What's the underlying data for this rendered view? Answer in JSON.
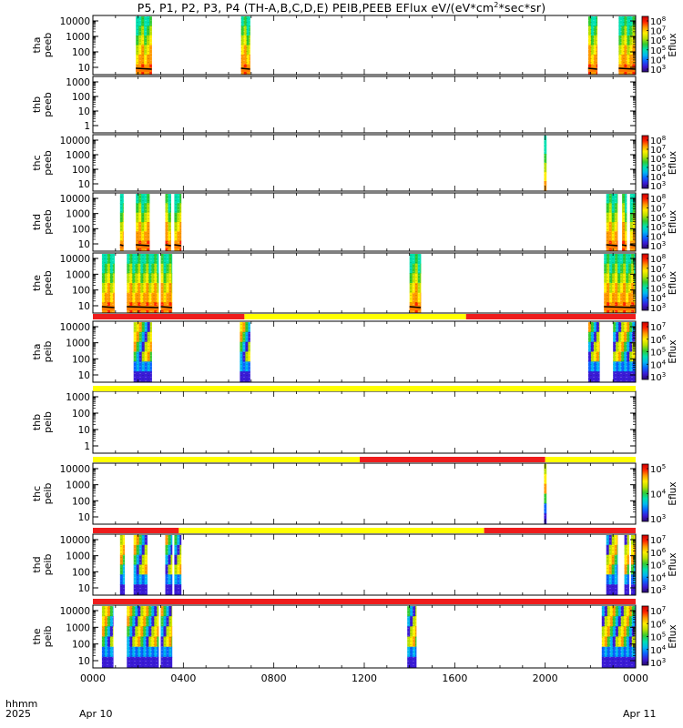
{
  "title_main": "P5, P1, P2, P3, P4 (TH-A,B,C,D,E) PEIB,PEEB EFlux eV/(eV*cm",
  "title_sup": "2",
  "title_tail": "*sec*sr)",
  "colorbar_label": "Eflux",
  "colors": {
    "spectrum": [
      "#2b0a6e",
      "#3a1bd6",
      "#0a63ff",
      "#00b7f0",
      "#00e0b0",
      "#33cc33",
      "#b8e000",
      "#ffee00",
      "#ff9900",
      "#ff2200",
      "#c80000"
    ],
    "flag_red": "#ee1c1c",
    "flag_yellow": "#ffff00",
    "density_orange": "#ff7a00"
  },
  "footer": {
    "axis_label_1": "hhmm",
    "axis_label_2": "2025",
    "date_start": "Apr 10",
    "date_end": "Apr 11"
  },
  "chart_data": {
    "type": "heatmap",
    "x_unit": "hhmm",
    "x_range": [
      "0000 Apr 10",
      "0000 Apr 11"
    ],
    "x_tick_labels": [
      "0000",
      "0400",
      "0800",
      "1200",
      "1600",
      "2000",
      "0000"
    ],
    "panels": [
      {
        "probe": "tha",
        "ylabel": "tha\npeeb",
        "y_ticks": [
          "10",
          "100",
          "1000",
          "10000"
        ],
        "cbar_ticks": [
          "10^3",
          "10^4",
          "10^5",
          "10^6",
          "10^7",
          "10^8"
        ],
        "intervals": [
          [
            1.9,
            2.6
          ],
          [
            6.55,
            6.95
          ],
          [
            21.9,
            22.3
          ],
          [
            23.25,
            24.0
          ]
        ],
        "density_line": true
      },
      {
        "probe": "thb",
        "ylabel": "thb\npeeb",
        "y_ticks": [
          "1",
          "10",
          "100",
          "1000"
        ],
        "cbar_ticks": [],
        "intervals": [],
        "density_line": false
      },
      {
        "probe": "thc",
        "ylabel": "thc\npeeb",
        "y_ticks": [
          "10",
          "100",
          "1000",
          "10000"
        ],
        "cbar_ticks": [
          "10^3",
          "10^4",
          "10^5",
          "10^6",
          "10^7",
          "10^8"
        ],
        "intervals": [
          [
            19.95,
            20.05
          ]
        ],
        "density_line": false
      },
      {
        "probe": "thd",
        "ylabel": "thd\npeeb",
        "y_ticks": [
          "10",
          "100",
          "1000",
          "10000"
        ],
        "cbar_ticks": [
          "10^3",
          "10^4",
          "10^5",
          "10^6",
          "10^7",
          "10^8"
        ],
        "intervals": [
          [
            1.2,
            1.35
          ],
          [
            1.9,
            2.5
          ],
          [
            3.2,
            3.45
          ],
          [
            3.6,
            3.9
          ],
          [
            22.7,
            23.2
          ],
          [
            23.4,
            23.6
          ],
          [
            23.75,
            24.0
          ]
        ],
        "density_line": true
      },
      {
        "probe": "the",
        "ylabel": "the\npeeb",
        "y_ticks": [
          "10",
          "100",
          "1000",
          "10000"
        ],
        "cbar_ticks": [
          "10^3",
          "10^4",
          "10^5",
          "10^6",
          "10^7",
          "10^8"
        ],
        "intervals": [
          [
            0.4,
            0.95
          ],
          [
            1.5,
            2.9
          ],
          [
            3.0,
            3.5
          ],
          [
            14.0,
            14.5
          ],
          [
            22.6,
            24.0
          ]
        ],
        "density_line": true
      },
      {
        "probe": "tha",
        "ylabel": "tha\npeib",
        "y_ticks": [
          "10",
          "100",
          "1000",
          "10000"
        ],
        "cbar_ticks": [
          "10^3",
          "10^4",
          "10^5",
          "10^6",
          "10^7"
        ],
        "intervals": [
          [
            1.8,
            2.6
          ],
          [
            6.5,
            6.95
          ],
          [
            21.9,
            22.4
          ],
          [
            23.0,
            24.0
          ]
        ],
        "density_line": false
      },
      {
        "probe": "thb",
        "ylabel": "thb\npeib",
        "y_ticks": [
          "1",
          "10",
          "100",
          "1000"
        ],
        "cbar_ticks": [],
        "intervals": [],
        "density_line": false
      },
      {
        "probe": "thc",
        "ylabel": "thc\npeib",
        "y_ticks": [
          "10",
          "100",
          "1000",
          "10000"
        ],
        "cbar_ticks": [
          "10^3",
          "10^4",
          "10^5"
        ],
        "intervals": [
          [
            19.95,
            20.05
          ]
        ],
        "density_line": false
      },
      {
        "probe": "thd",
        "ylabel": "thd\npeib",
        "y_ticks": [
          "10",
          "100",
          "1000",
          "10000"
        ],
        "cbar_ticks": [
          "10^3",
          "10^4",
          "10^5",
          "10^6",
          "10^7"
        ],
        "intervals": [
          [
            1.2,
            1.4
          ],
          [
            1.8,
            2.4
          ],
          [
            3.2,
            3.5
          ],
          [
            3.6,
            3.9
          ],
          [
            22.7,
            23.2
          ],
          [
            23.5,
            23.7
          ],
          [
            23.8,
            24.0
          ]
        ],
        "density_line": false
      },
      {
        "probe": "the",
        "ylabel": "the\npeib",
        "y_ticks": [
          "10",
          "100",
          "1000",
          "10000"
        ],
        "cbar_ticks": [
          "10^3",
          "10^4",
          "10^5",
          "10^6",
          "10^7"
        ],
        "intervals": [
          [
            0.4,
            0.9
          ],
          [
            1.5,
            2.9
          ],
          [
            3.0,
            3.5
          ],
          [
            13.9,
            14.3
          ],
          [
            22.5,
            24.0
          ]
        ],
        "density_line": false
      }
    ],
    "flag_bars": [
      {
        "segments": [
          [
            0,
            6.7,
            "red"
          ],
          [
            6.7,
            16.5,
            "yellow"
          ],
          [
            16.5,
            24,
            "red"
          ]
        ]
      },
      {
        "segments": [
          [
            0,
            24,
            "yellow"
          ]
        ]
      },
      {
        "segments": [
          [
            0,
            11.8,
            "yellow"
          ],
          [
            11.8,
            20,
            "red"
          ],
          [
            20,
            24,
            "yellow"
          ]
        ]
      },
      {
        "segments": [
          [
            0,
            3.8,
            "red"
          ],
          [
            3.8,
            17.3,
            "yellow"
          ],
          [
            17.3,
            24,
            "red"
          ]
        ]
      },
      {
        "segments": [
          [
            0,
            24,
            "red"
          ]
        ]
      }
    ]
  }
}
